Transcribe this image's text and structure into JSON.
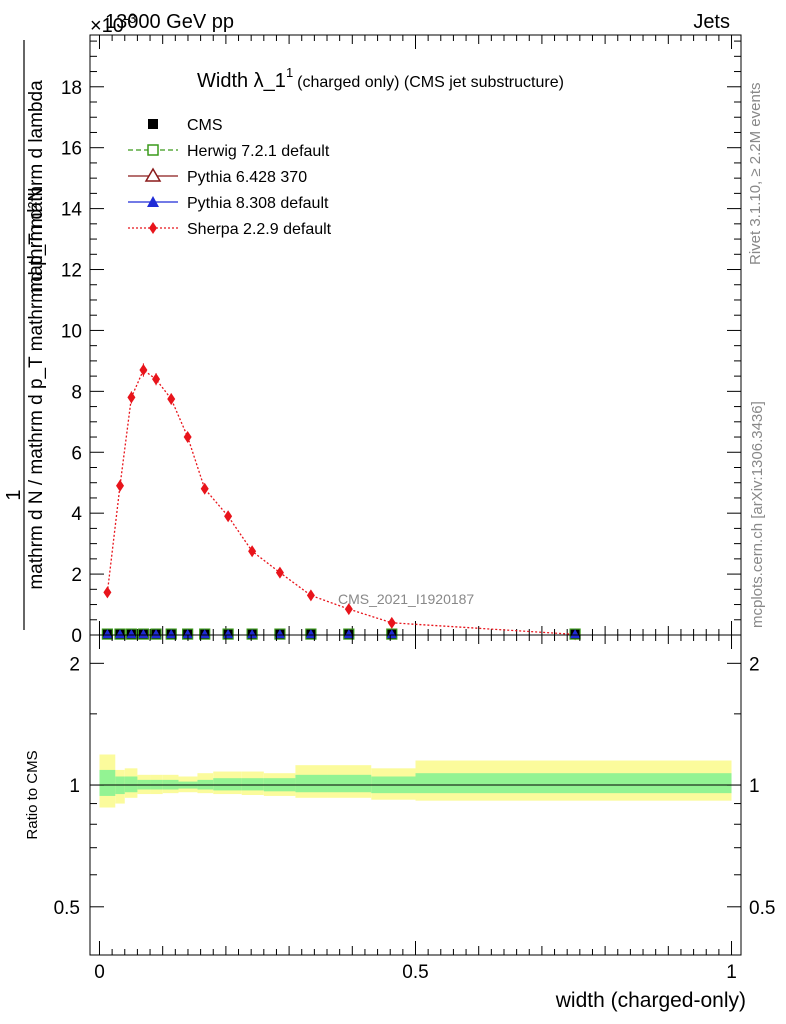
{
  "header": {
    "energy_label": "13000 GeV pp",
    "scale_label": "×10",
    "scale_exp": "-3",
    "category_label": "Jets"
  },
  "side_labels": {
    "rivet": "Rivet 3.1.10, ≥ 2.2M events",
    "mcplots": "mcplots.cern.ch [arXiv:1306.3436]"
  },
  "watermark": "CMS_2021_I1920187",
  "chart_data": [
    {
      "type": "line",
      "title": "Width λ_1",
      "title_sup": "1",
      "title_suffix": "(charged only) (CMS jet substructure)",
      "ylabel_numerator": "1",
      "ylabel_denominator": "mathrm d N / mathrm d p_T mathrm d p_T mathrm d lambda",
      "ylabel_top": "mathrm d²N",
      "ylim": [
        0,
        19.7
      ],
      "yticks": [
        0,
        2,
        4,
        6,
        8,
        10,
        12,
        14,
        16,
        18
      ],
      "xlim": [
        -0.015,
        1.015
      ],
      "legend": [
        {
          "name": "CMS",
          "color": "#000000",
          "marker": "square-filled",
          "line": "none"
        },
        {
          "name": "Herwig 7.2.1 default",
          "color": "#3a9a1a",
          "marker": "square-open",
          "line": "dashed"
        },
        {
          "name": "Pythia 6.428 370",
          "color": "#8b1a1a",
          "marker": "triangle-open",
          "line": "solid"
        },
        {
          "name": "Pythia 8.308 default",
          "color": "#1f2bd6",
          "marker": "triangle-filled",
          "line": "solid"
        },
        {
          "name": "Sherpa 2.2.9 default",
          "color": "#e8141b",
          "marker": "diamond",
          "line": "dotted"
        }
      ],
      "sherpa": {
        "x": [
          0.0125,
          0.0325,
          0.0505,
          0.0695,
          0.0895,
          0.1135,
          0.1395,
          0.1665,
          0.2035,
          0.2415,
          0.2855,
          0.3345,
          0.3945,
          0.4625,
          0.7525
        ],
        "y": [
          1.4,
          4.9,
          7.8,
          8.7,
          8.4,
          7.75,
          6.5,
          4.8,
          3.9,
          2.75,
          2.05,
          1.3,
          0.85,
          0.4,
          0.02
        ],
        "err": [
          0.12,
          0.18,
          0.2,
          0.22,
          0.2,
          0.18,
          0.16,
          0.14,
          0.12,
          0.1,
          0.08,
          0.06,
          0.05,
          0.04,
          0.01
        ]
      },
      "cms_x": [
        0.0125,
        0.0325,
        0.0505,
        0.0695,
        0.0895,
        0.1135,
        0.1395,
        0.1665,
        0.2035,
        0.2415,
        0.2855,
        0.3345,
        0.3945,
        0.4625,
        0.7525
      ],
      "cms_y": [
        0.03,
        0.03,
        0.03,
        0.03,
        0.03,
        0.03,
        0.03,
        0.03,
        0.03,
        0.03,
        0.03,
        0.03,
        0.03,
        0.03,
        0.03
      ]
    },
    {
      "type": "area",
      "ylabel": "Ratio to CMS",
      "xlabel": "width (charged-only)",
      "xticks": [
        0,
        0.5,
        1
      ],
      "xtick_labels": [
        "0",
        "0.5",
        "1"
      ],
      "yticks": [
        0.5,
        1,
        2
      ],
      "ytick_labels": [
        "0.5",
        "1",
        "2"
      ],
      "ylim": [
        0.38,
        2.35
      ],
      "scale": "log",
      "bin_edges": [
        0.0,
        0.025,
        0.04,
        0.06,
        0.08,
        0.1,
        0.125,
        0.155,
        0.18,
        0.225,
        0.26,
        0.31,
        0.36,
        0.43,
        0.5,
        1.0
      ],
      "yellow_lo": [
        0.88,
        0.9,
        0.93,
        0.95,
        0.95,
        0.955,
        0.96,
        0.955,
        0.95,
        0.945,
        0.94,
        0.93,
        0.93,
        0.92,
        0.915
      ],
      "yellow_hi": [
        1.19,
        1.09,
        1.1,
        1.06,
        1.06,
        1.06,
        1.05,
        1.07,
        1.08,
        1.08,
        1.07,
        1.12,
        1.12,
        1.1,
        1.15
      ],
      "green_lo": [
        0.94,
        0.95,
        0.96,
        0.975,
        0.975,
        0.975,
        0.98,
        0.975,
        0.97,
        0.97,
        0.965,
        0.96,
        0.96,
        0.955,
        0.955
      ],
      "green_hi": [
        1.09,
        1.05,
        1.05,
        1.03,
        1.03,
        1.03,
        1.02,
        1.03,
        1.04,
        1.04,
        1.04,
        1.06,
        1.06,
        1.05,
        1.07
      ]
    }
  ]
}
